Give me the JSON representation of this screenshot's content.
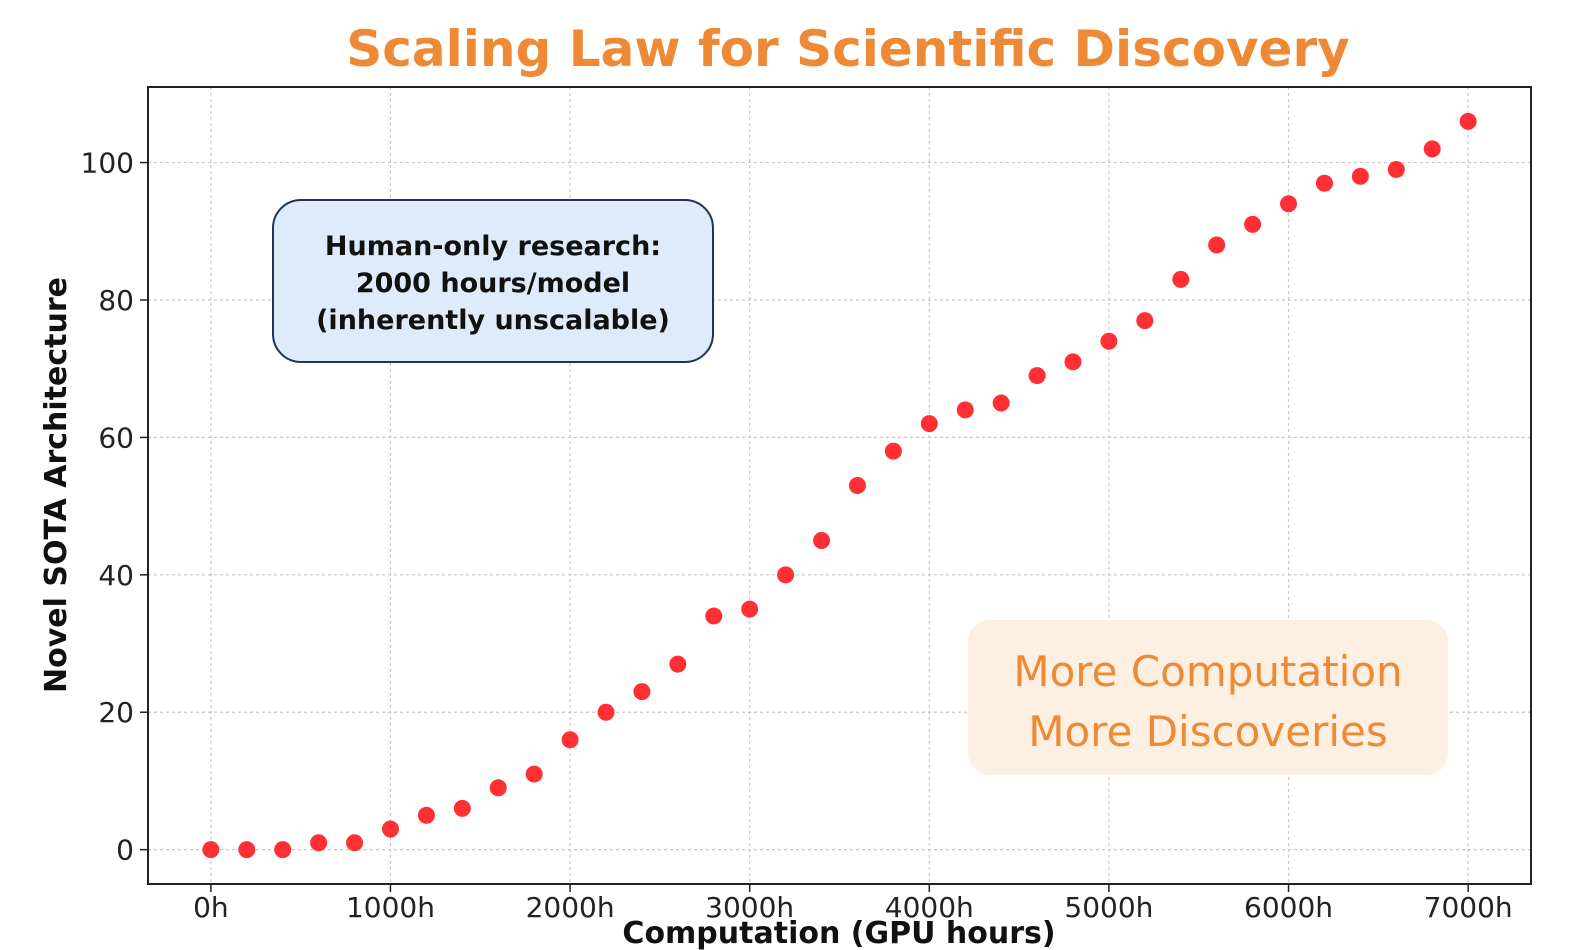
{
  "chart_data": {
    "type": "scatter",
    "title": "Scaling Law for Scientific Discovery",
    "xlabel": "Computation (GPU hours)",
    "ylabel": "Novel SOTA Architecture",
    "xlim": [
      -350,
      7350
    ],
    "ylim": [
      -5,
      111
    ],
    "x_ticks": [
      0,
      1000,
      2000,
      3000,
      4000,
      5000,
      6000,
      7000
    ],
    "x_tick_labels": [
      "0h",
      "1000h",
      "2000h",
      "3000h",
      "4000h",
      "5000h",
      "6000h",
      "7000h"
    ],
    "y_ticks": [
      0,
      20,
      40,
      60,
      80,
      100
    ],
    "y_tick_labels": [
      "0",
      "20",
      "40",
      "60",
      "80",
      "100"
    ],
    "grid": true,
    "point_color": "#ff2f33",
    "title_color": "#ee8a36",
    "x": [
      0,
      200,
      400,
      600,
      800,
      1000,
      1200,
      1400,
      1600,
      1800,
      2000,
      2200,
      2400,
      2600,
      2800,
      3000,
      3200,
      3400,
      3600,
      3800,
      4000,
      4200,
      4400,
      4600,
      4800,
      5000,
      5200,
      5400,
      5600,
      5800,
      6000,
      6200,
      6400,
      6600,
      6800,
      7000
    ],
    "y": [
      0,
      0,
      0,
      1,
      1,
      3,
      5,
      6,
      9,
      11,
      16,
      20,
      23,
      27,
      34,
      35,
      40,
      45,
      53,
      58,
      62,
      64,
      65,
      69,
      71,
      74,
      77,
      83,
      88,
      91,
      94,
      97,
      98,
      99,
      102,
      106
    ],
    "annotations": [
      {
        "lines": [
          "Human-only research:",
          "2000 hours/model",
          "(inherently unscalable)"
        ],
        "box_color": "#deebfb",
        "border_color": "#1f3553"
      },
      {
        "lines": [
          "More Computation",
          "More Discoveries"
        ],
        "box_color": "#fdf0e2",
        "text_color": "#ee8a36"
      }
    ]
  }
}
